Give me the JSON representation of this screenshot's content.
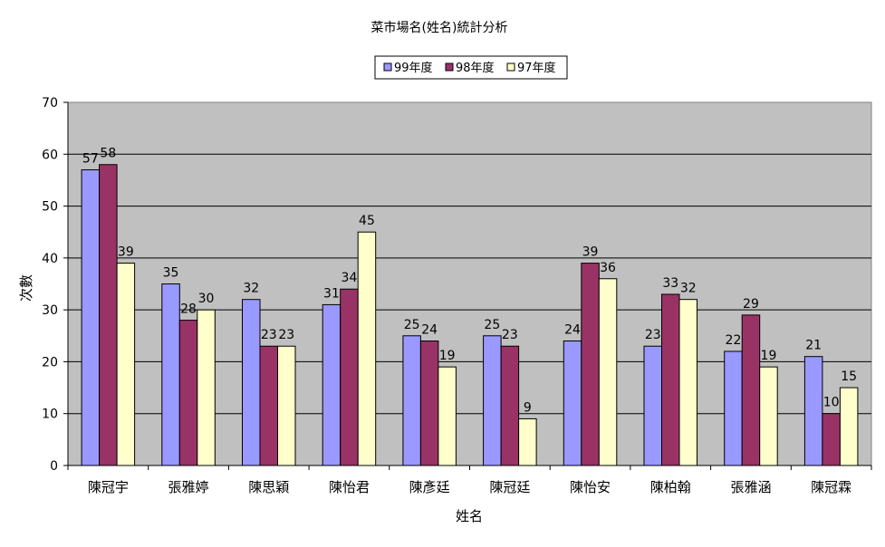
{
  "chart_data": {
    "type": "bar",
    "title": "菜市場名(姓名)統計分析",
    "xlabel": "姓名",
    "ylabel": "次數",
    "ylim": [
      0,
      70
    ],
    "yticks": [
      0,
      10,
      20,
      30,
      40,
      50,
      60,
      70
    ],
    "grid": true,
    "legend_position": "top",
    "plot_background": "#c0c0c0",
    "categories": [
      "陳冠宇",
      "張雅婷",
      "陳思穎",
      "陳怡君",
      "陳彥廷",
      "陳冠廷",
      "陳怡安",
      "陳柏翰",
      "張雅涵",
      "陳冠霖"
    ],
    "series": [
      {
        "name": "99年度",
        "color": "#9999ff",
        "values": [
          57,
          35,
          32,
          31,
          25,
          25,
          24,
          23,
          22,
          21
        ]
      },
      {
        "name": "98年度",
        "color": "#993366",
        "values": [
          58,
          28,
          23,
          34,
          24,
          23,
          39,
          33,
          29,
          10
        ]
      },
      {
        "name": "97年度",
        "color": "#ffffcc",
        "values": [
          39,
          30,
          23,
          45,
          19,
          9,
          36,
          32,
          19,
          15
        ]
      }
    ]
  }
}
